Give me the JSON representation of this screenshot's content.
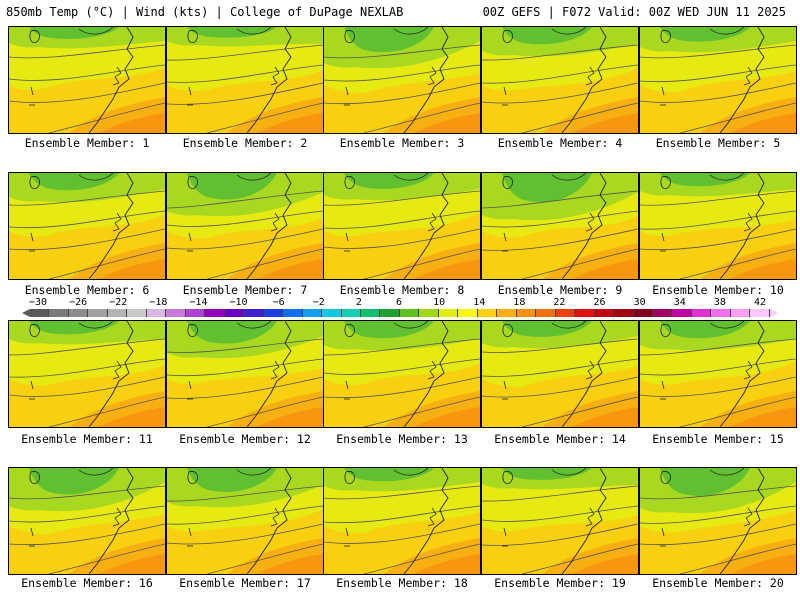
{
  "header": {
    "title_left": "850mb Temp (°C) | Wind (kts) | College of DuPage NEXLAB",
    "title_right": "00Z GEFS | F072 Valid: 00Z WED JUN 11 2025"
  },
  "members": [
    {
      "label": "Ensemble Member: 1"
    },
    {
      "label": "Ensemble Member: 2"
    },
    {
      "label": "Ensemble Member: 3"
    },
    {
      "label": "Ensemble Member: 4"
    },
    {
      "label": "Ensemble Member: 5"
    },
    {
      "label": "Ensemble Member: 6"
    },
    {
      "label": "Ensemble Member: 7"
    },
    {
      "label": "Ensemble Member: 8"
    },
    {
      "label": "Ensemble Member: 9"
    },
    {
      "label": "Ensemble Member: 10"
    },
    {
      "label": "Ensemble Member: 11"
    },
    {
      "label": "Ensemble Member: 12"
    },
    {
      "label": "Ensemble Member: 13"
    },
    {
      "label": "Ensemble Member: 14"
    },
    {
      "label": "Ensemble Member: 15"
    },
    {
      "label": "Ensemble Member: 16"
    },
    {
      "label": "Ensemble Member: 17"
    },
    {
      "label": "Ensemble Member: 18"
    },
    {
      "label": "Ensemble Member: 19"
    },
    {
      "label": "Ensemble Member: 20"
    }
  ],
  "colorbar": {
    "labels": [
      "−30",
      "−26",
      "−22",
      "−18",
      "−14",
      "−10",
      "−6",
      "−2",
      "2",
      "6",
      "10",
      "14",
      "18",
      "22",
      "26",
      "30",
      "34",
      "38",
      "42"
    ],
    "colors": [
      "#5a5a5a",
      "#7a7a7a",
      "#8c8c8c",
      "#a0a0a0",
      "#b4b4b4",
      "#c8c8c8",
      "#d8b8e0",
      "#c67ad9",
      "#b040d0",
      "#9000b8",
      "#6a00c0",
      "#4020d0",
      "#1a40e0",
      "#1070f0",
      "#10a0f0",
      "#10c8e0",
      "#10d0b0",
      "#10c070",
      "#20a030",
      "#60c020",
      "#a0d810",
      "#e0ee10",
      "#f8f810",
      "#f8d010",
      "#f8b010",
      "#f89010",
      "#f07010",
      "#f04010",
      "#e01010",
      "#c00010",
      "#a00010",
      "#800020",
      "#a00060",
      "#c000a0",
      "#e030d0",
      "#f070f0",
      "#f8a0f0",
      "#f8c8f8"
    ]
  }
}
